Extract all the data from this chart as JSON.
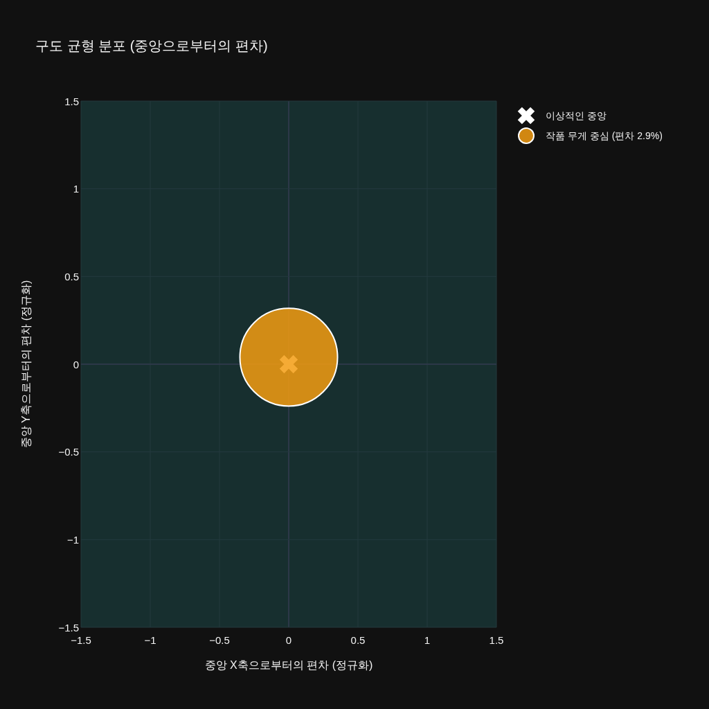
{
  "chart_data": {
    "type": "scatter",
    "title": "구도 균형 분포 (중앙으로부터의 편차)",
    "xlabel": "중앙 X축으로부터의 편차 (정규화)",
    "ylabel": "중앙 Y축으로부터의 편차 (정규화)",
    "xlim": [
      -1.5,
      1.5
    ],
    "ylim": [
      -1.5,
      1.5
    ],
    "xticks": [
      -1.5,
      -1,
      -0.5,
      0,
      0.5,
      1,
      1.5
    ],
    "yticks": [
      -1.5,
      -1,
      -0.5,
      0,
      0.5,
      1,
      1.5
    ],
    "grid": true,
    "legend": "top right",
    "series": [
      {
        "name": "이상적인 중앙",
        "color": "#ffffff",
        "marker": "cross",
        "x": [
          0
        ],
        "values": [
          0
        ]
      },
      {
        "name": "작품 무게 중심 (편차 2.9%)",
        "color": "#f39c12",
        "marker": "circle",
        "x": [
          0
        ],
        "values": [
          0.04
        ]
      }
    ]
  }
}
